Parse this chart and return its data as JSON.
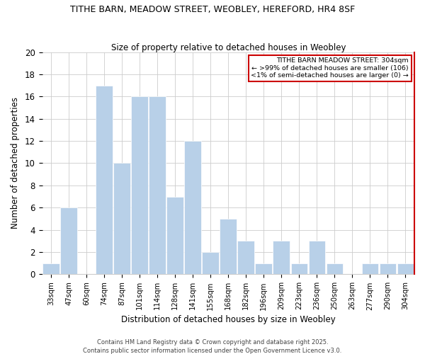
{
  "title": "TITHE BARN, MEADOW STREET, WEOBLEY, HEREFORD, HR4 8SF",
  "subtitle": "Size of property relative to detached houses in Weobley",
  "xlabel": "Distribution of detached houses by size in Weobley",
  "ylabel": "Number of detached properties",
  "bin_labels": [
    "33sqm",
    "47sqm",
    "60sqm",
    "74sqm",
    "87sqm",
    "101sqm",
    "114sqm",
    "128sqm",
    "141sqm",
    "155sqm",
    "168sqm",
    "182sqm",
    "196sqm",
    "209sqm",
    "223sqm",
    "236sqm",
    "250sqm",
    "263sqm",
    "277sqm",
    "290sqm",
    "304sqm"
  ],
  "counts": [
    1,
    6,
    0,
    17,
    10,
    16,
    16,
    7,
    12,
    2,
    5,
    3,
    1,
    3,
    1,
    3,
    1,
    0,
    1,
    1,
    1
  ],
  "bar_color": "#b8d0e8",
  "annotation_line1": "TITHE BARN MEADOW STREET: 304sqm",
  "annotation_line2": "← >99% of detached houses are smaller (106)",
  "annotation_line3": "<1% of semi-detached houses are larger (0) →",
  "ylim": [
    0,
    20
  ],
  "yticks": [
    0,
    2,
    4,
    6,
    8,
    10,
    12,
    14,
    16,
    18,
    20
  ],
  "grid_color": "#cccccc",
  "bg_color": "#ffffff",
  "footer1": "Contains HM Land Registry data © Crown copyright and database right 2025.",
  "footer2": "Contains public sector information licensed under the Open Government Licence v3.0."
}
